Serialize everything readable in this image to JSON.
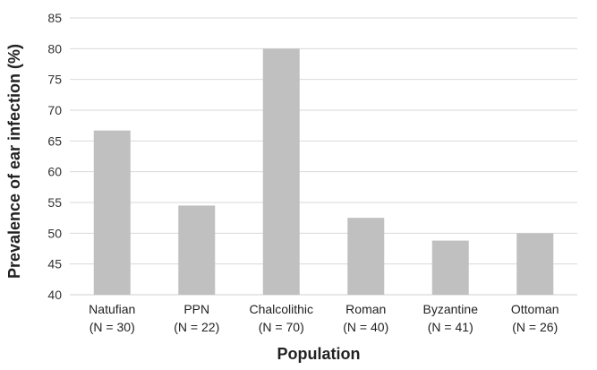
{
  "chart_data": {
    "type": "bar",
    "categories": [
      {
        "name": "Natufian",
        "n": "(N = 30)"
      },
      {
        "name": "PPN",
        "n": "(N = 22)"
      },
      {
        "name": "Chalcolithic",
        "n": "(N = 70)"
      },
      {
        "name": "Roman",
        "n": "(N = 40)"
      },
      {
        "name": "Byzantine",
        "n": "(N = 41)"
      },
      {
        "name": "Ottoman",
        "n": "(N = 26)"
      }
    ],
    "values": [
      66.7,
      54.5,
      80,
      52.5,
      48.8,
      50
    ],
    "xlabel": "Population",
    "ylabel": "Prevalence of ear infection (%)",
    "ylim": [
      40,
      85
    ],
    "yticks": [
      40,
      45,
      50,
      55,
      60,
      65,
      70,
      75,
      80,
      85
    ],
    "grid": true,
    "bar_color": "#c0c0c0",
    "grid_color": "#d9d9d9"
  }
}
